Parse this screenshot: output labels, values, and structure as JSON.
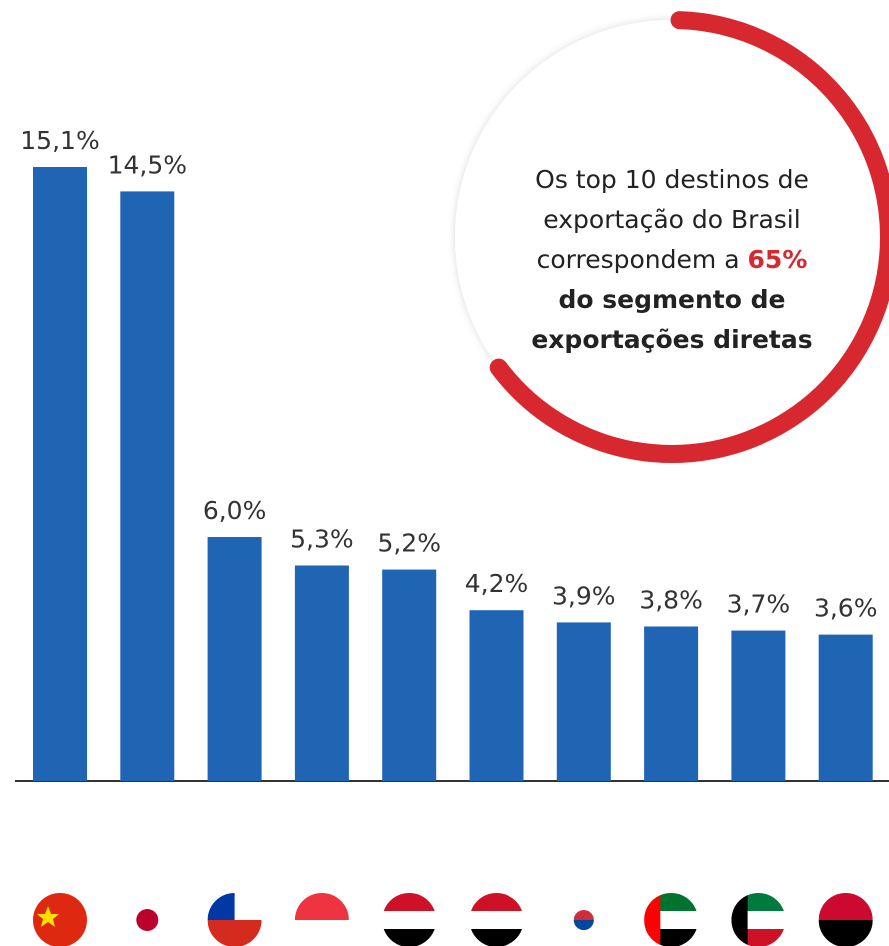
{
  "chart_data": {
    "type": "bar",
    "categories": [
      null,
      null,
      null,
      null,
      null,
      null,
      null,
      null,
      null,
      null
    ],
    "values": [
      15.1,
      14.5,
      6.0,
      5.3,
      5.2,
      4.2,
      3.9,
      3.8,
      3.7,
      3.6
    ],
    "value_labels": [
      "15,1%",
      "14,5%",
      "6,0%",
      "5,3%",
      "5,2%",
      "4,2%",
      "3,9%",
      "3,8%",
      "3,7%",
      "3,6%"
    ],
    "color": "#1f65b4",
    "annotation": {
      "text": [
        "Os top 10 destinos de",
        "exportação do Brasil",
        "correspondem a"
      ],
      "highlight": [
        "65%",
        "do segmento de",
        "exportações diretas"
      ],
      "highlight_color": "#d7282f"
    }
  }
}
